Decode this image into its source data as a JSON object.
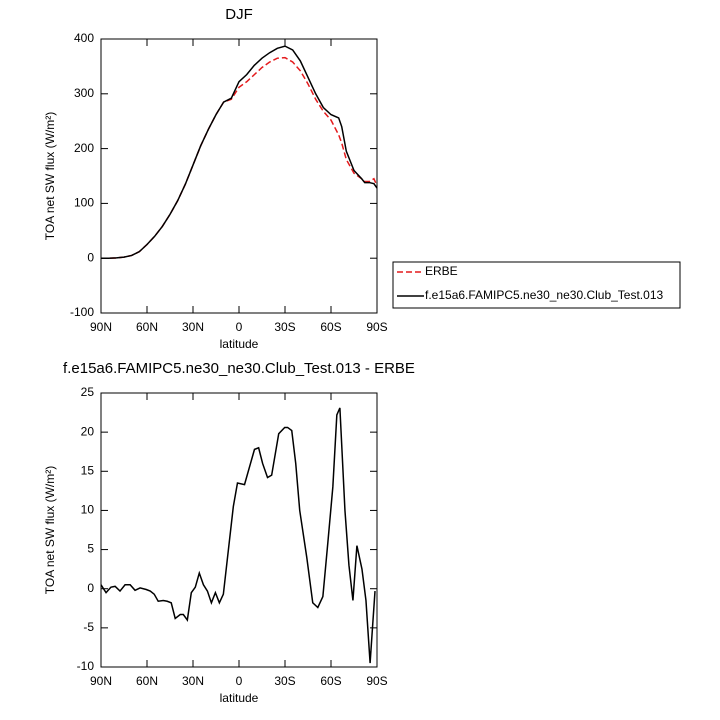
{
  "chart_data": [
    {
      "type": "line",
      "title": "DJF",
      "x_label": "latitude",
      "y_label": "TOA net SW flux (W/m²)",
      "x": [
        90,
        85,
        80,
        75,
        70,
        65,
        60,
        55,
        50,
        45,
        40,
        35,
        30,
        25,
        20,
        15,
        10,
        5,
        0,
        -5,
        -10,
        -15,
        -20,
        -25,
        -30,
        -35,
        -40,
        -45,
        -50,
        -55,
        -60,
        -65,
        -67,
        -70,
        -75,
        -80,
        -82,
        -85,
        -88,
        -90
      ],
      "series": [
        {
          "name": "ERBE",
          "color": "#e41a1c",
          "dashed": true,
          "values": [
            0,
            0,
            0.5,
            2,
            5,
            12,
            25,
            40,
            58,
            80,
            105,
            135,
            170,
            205,
            235,
            262,
            285,
            290,
            312,
            322,
            335,
            348,
            358,
            365,
            366,
            358,
            342,
            318,
            290,
            268,
            252,
            225,
            210,
            180,
            155,
            145,
            140,
            140,
            145,
            132
          ]
        },
        {
          "name": "f.e15a6.FAMIPC5.ne30_ne30.Club_Test.013",
          "color": "#000000",
          "dashed": false,
          "values": [
            0,
            0,
            0.5,
            2,
            5,
            12,
            25,
            40,
            58,
            80,
            105,
            135,
            170,
            205,
            235,
            262,
            285,
            292,
            322,
            335,
            352,
            365,
            375,
            383,
            387,
            380,
            360,
            330,
            300,
            275,
            262,
            256,
            240,
            195,
            160,
            145,
            138,
            138,
            136,
            128
          ]
        }
      ],
      "xlim": [
        90,
        -90
      ],
      "xticks": [
        {
          "value": 90,
          "label": "90N"
        },
        {
          "value": 60,
          "label": "60N"
        },
        {
          "value": 30,
          "label": "30N"
        },
        0,
        {
          "value": -30,
          "label": "30S"
        },
        {
          "value": -60,
          "label": "60S"
        },
        {
          "value": -90,
          "label": "90S"
        }
      ],
      "ylim": [
        -100,
        400
      ],
      "yticks": [
        -100,
        0,
        100,
        200,
        300,
        400
      ],
      "grid": false
    },
    {
      "type": "line",
      "title": "f.e15a6.FAMIPC5.ne30_ne30.Club_Test.013 - ERBE",
      "x_label": "latitude",
      "y_label": "TOA net SW flux (W/m²)",
      "x": [
        90,
        86.7,
        83.5,
        80.8,
        77.6,
        74.3,
        71.0,
        67.8,
        64.5,
        60.5,
        57.9,
        55.3,
        52.7,
        49.4,
        46.8,
        44.2,
        41.6,
        38.3,
        36.3,
        33.7,
        31.1,
        28.5,
        25.9,
        23.2,
        20.6,
        18.0,
        15.4,
        12.8,
        10.2,
        6.9,
        3.7,
        1.0,
        -3.6,
        -7.5,
        -10.1,
        -12.8,
        -15.4,
        -18.6,
        -21.3,
        -25.9,
        -29.8,
        -31.7,
        -34.4,
        -37.0,
        -39.6,
        -44.2,
        -48.1,
        -51.4,
        -54.7,
        -58.0,
        -61.2,
        -63.8,
        -65.8,
        -69.1,
        -71.7,
        -74.3,
        -76.9,
        -80.2,
        -82.8,
        -85.5,
        -87.4,
        -88.7
      ],
      "values": [
        0.5,
        -0.5,
        0.2,
        0.3,
        -0.3,
        0.5,
        0.5,
        -0.2,
        0.1,
        -0.1,
        -0.3,
        -0.7,
        -1.6,
        -1.5,
        -1.6,
        -1.8,
        -3.8,
        -3.3,
        -3.3,
        -4.0,
        -0.5,
        0.2,
        2.0,
        0.5,
        -0.3,
        -1.8,
        -0.5,
        -1.8,
        -0.7,
        5,
        10.5,
        13.5,
        13.3,
        16,
        17.8,
        18,
        16,
        14.2,
        14.5,
        19.8,
        20.6,
        20.6,
        20.2,
        16,
        10,
        4,
        -1.8,
        -2.4,
        -1,
        6,
        13,
        22.2,
        23.1,
        10,
        3,
        -1.5,
        5.5,
        2.5,
        -1.5,
        -9.5,
        -4,
        -0.3
      ],
      "color": "#000000",
      "xlim": [
        90,
        -90
      ],
      "xticks": [
        {
          "value": 90,
          "label": "90N"
        },
        {
          "value": 60,
          "label": "60N"
        },
        {
          "value": 30,
          "label": "30N"
        },
        0,
        {
          "value": -30,
          "label": "30S"
        },
        {
          "value": -60,
          "label": "60S"
        },
        {
          "value": -90,
          "label": "90S"
        }
      ],
      "ylim": [
        -10,
        25
      ],
      "yticks": [
        -10,
        -5,
        0,
        5,
        10,
        15,
        20,
        25
      ],
      "grid": false
    }
  ]
}
